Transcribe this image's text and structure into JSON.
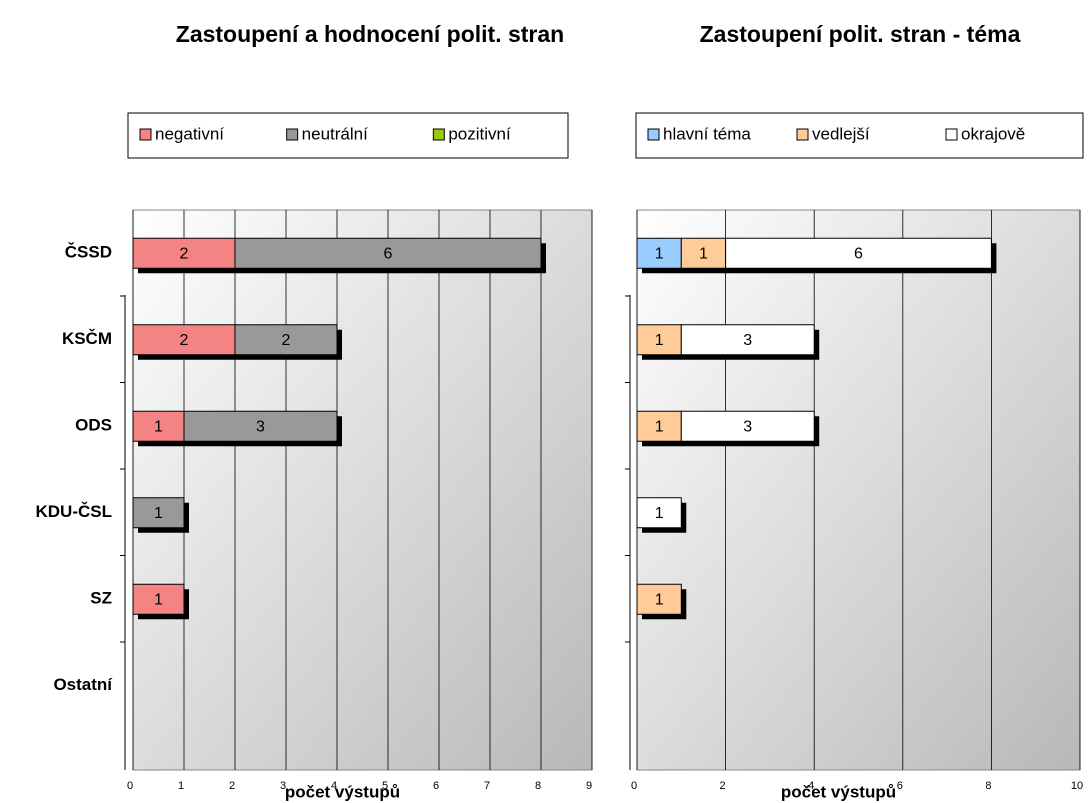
{
  "chart_data": [
    {
      "type": "bar",
      "orientation": "horizontal",
      "stacked": true,
      "title": "Zastoupení a hodnocení polit. stran",
      "x_label": "počet výstupů",
      "categories": [
        "ČSSD",
        "KSČM",
        "ODS",
        "KDU-ČSL",
        "SZ",
        "Ostatní"
      ],
      "series": [
        {
          "name": "negativní",
          "color": "#f48383",
          "values": [
            2,
            2,
            1,
            null,
            1,
            null
          ]
        },
        {
          "name": "neutrální",
          "color": "#999999",
          "values": [
            6,
            2,
            3,
            1,
            null,
            null
          ]
        },
        {
          "name": "pozitivní",
          "color": "#99cc00",
          "values": [
            null,
            null,
            null,
            null,
            null,
            null
          ]
        }
      ],
      "xlim": [
        0,
        9
      ],
      "xticks": [
        0,
        1,
        2,
        3,
        4,
        5,
        6,
        7,
        8,
        9
      ],
      "grid": true,
      "legend": "top"
    },
    {
      "type": "bar",
      "orientation": "horizontal",
      "stacked": true,
      "title": "Zastoupení polit. stran - téma",
      "x_label": "počet výstupů",
      "series": [
        {
          "name": "hlavní téma",
          "color": "#99ccff",
          "values": [
            1,
            null,
            null,
            null,
            null,
            null
          ]
        },
        {
          "name": "vedlejší",
          "color": "#ffcc99",
          "values": [
            1,
            1,
            1,
            null,
            1,
            null
          ]
        },
        {
          "name": "okrajově",
          "color": "#ffffff",
          "values": [
            6,
            3,
            3,
            1,
            null,
            null
          ]
        }
      ],
      "xlim": [
        0,
        10
      ],
      "xticks": [
        0,
        2,
        4,
        6,
        8,
        10
      ],
      "grid": true,
      "legend": "top"
    }
  ]
}
